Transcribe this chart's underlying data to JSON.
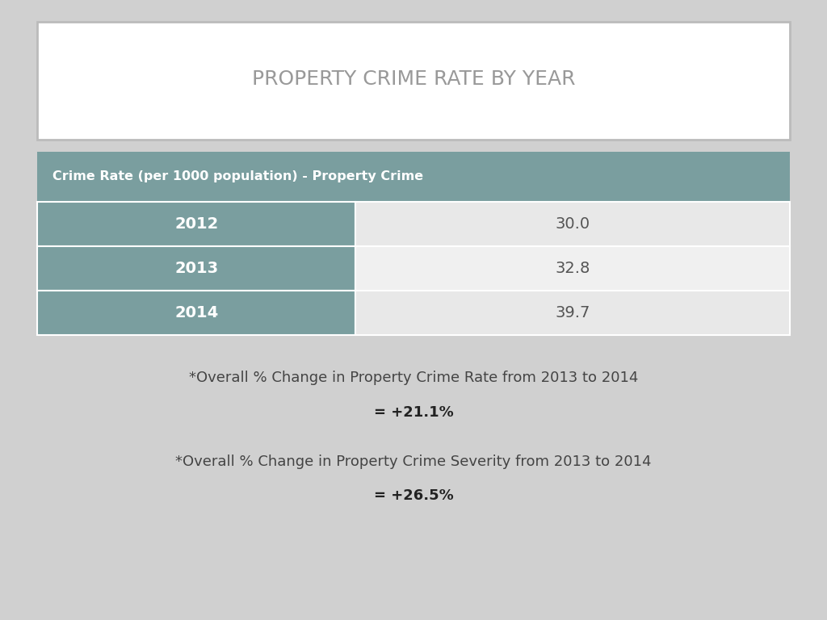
{
  "title": "PROPERTY CRIME RATE BY YEAR",
  "table_header": "Crime Rate (per 1000 population) - Property Crime",
  "years": [
    "2012",
    "2013",
    "2014"
  ],
  "values": [
    "30.0",
    "32.8",
    "39.7"
  ],
  "note1_line1": "*Overall % Change in Property Crime Rate from 2013 to 2014",
  "note1_line2": "= +21.1%",
  "note2_line1": "*Overall % Change in Property Crime Severity from 2013 to 2014",
  "note2_line2": "= +26.5%",
  "bg_color": "#d0d0d0",
  "title_box_color": "#ffffff",
  "title_color": "#999999",
  "table_header_bg": "#7a9e9f",
  "table_header_color": "#ffffff",
  "row_left_bg": "#7a9e9f",
  "row_left_color": "#ffffff",
  "row_right_bg_odd": "#e8e8e8",
  "row_right_bg_even": "#f0f0f0",
  "row_right_color": "#555555",
  "note_color": "#444444",
  "note_bold_color": "#222222"
}
